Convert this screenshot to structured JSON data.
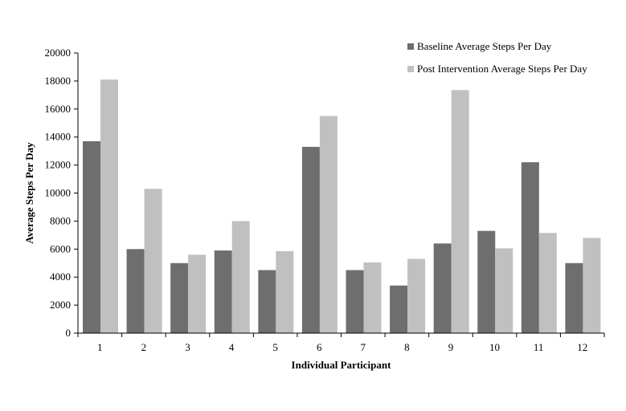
{
  "chart_data": {
    "type": "bar",
    "categories": [
      "1",
      "2",
      "3",
      "4",
      "5",
      "6",
      "7",
      "8",
      "9",
      "10",
      "11",
      "12"
    ],
    "series": [
      {
        "name": "Baseline Average Steps Per Day",
        "color": "#6e6e6e",
        "values": [
          13700,
          6000,
          5000,
          5900,
          4500,
          13300,
          4500,
          3400,
          6400,
          7300,
          12200,
          5000
        ]
      },
      {
        "name": "Post Intervention Average Steps Per Day",
        "color": "#c0c0c0",
        "values": [
          18100,
          10300,
          5600,
          8000,
          5850,
          15500,
          5050,
          5300,
          17350,
          6050,
          7150,
          6800
        ]
      }
    ],
    "xlabel": "Individual Participant",
    "ylabel": "Average Steps Per Day",
    "ylim": [
      0,
      20000
    ],
    "yticks": [
      "0",
      "2000",
      "4000",
      "6000",
      "8000",
      "10000",
      "12000",
      "14000",
      "16000",
      "18000",
      "20000"
    ],
    "grid": false,
    "legend_position": "top-right"
  }
}
